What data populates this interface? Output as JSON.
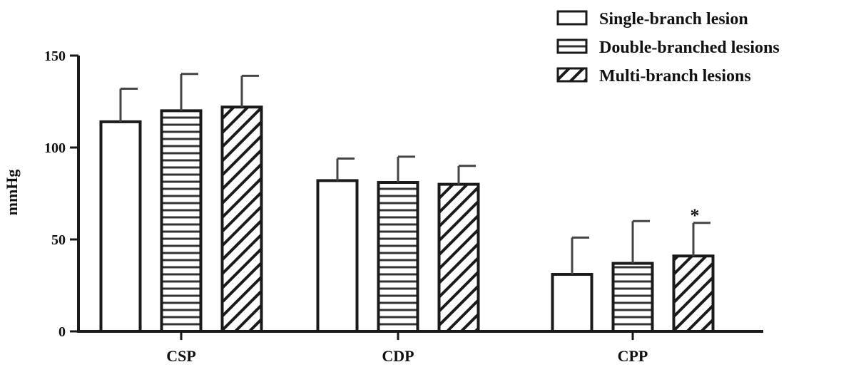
{
  "chart_data": {
    "type": "bar",
    "categories": [
      "CSP",
      "CDP",
      "CPP"
    ],
    "series": [
      {
        "name": "Single-branch lesion",
        "pattern": "none",
        "values": [
          114,
          82,
          31
        ],
        "errors": [
          18,
          12,
          20
        ]
      },
      {
        "name": "Double-branched lesions",
        "pattern": "horizontal",
        "values": [
          120,
          81,
          37
        ],
        "errors": [
          20,
          14,
          23
        ]
      },
      {
        "name": "Multi-branch lesions",
        "pattern": "diagonal",
        "values": [
          122,
          80,
          41
        ],
        "errors": [
          17,
          10,
          18
        ]
      }
    ],
    "ylabel": "mmHg",
    "ylim": [
      0,
      150
    ],
    "yticks": [
      0,
      50,
      100,
      150
    ],
    "grid": false,
    "legend_position": "top-right",
    "error_bars": "upper",
    "annotations": [
      {
        "text": "*",
        "category": "CPP",
        "series": "Multi-branch lesions"
      }
    ],
    "colors": {
      "stroke": "#1a1a1a",
      "fill": "#ffffff",
      "pattern": "#333333"
    }
  }
}
